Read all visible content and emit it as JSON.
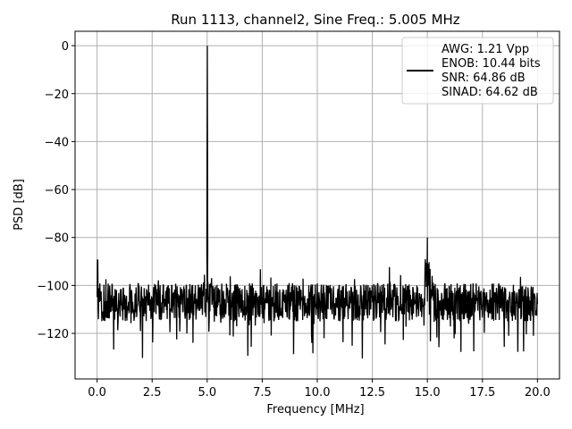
{
  "chart_data": {
    "type": "line",
    "title": "Run 1113, channel2, Sine Freq.: 5.005 MHz",
    "xlabel": "Frequency [MHz]",
    "ylabel": "PSD [dB]",
    "xlim": [
      -1.0,
      21.0
    ],
    "ylim": [
      -139.0,
      6.0
    ],
    "xticks": [
      0.0,
      2.5,
      5.0,
      7.5,
      10.0,
      12.5,
      15.0,
      17.5,
      20.0
    ],
    "xtick_labels": [
      "0.0",
      "2.5",
      "5.0",
      "7.5",
      "10.0",
      "12.5",
      "15.0",
      "17.5",
      "20.0"
    ],
    "yticks": [
      0,
      -20,
      -40,
      -60,
      -80,
      -100,
      -120
    ],
    "ytick_labels": [
      "0",
      "−20",
      "−40",
      "−60",
      "−80",
      "−100",
      "−120"
    ],
    "grid": true,
    "legend_position": "top-right",
    "line_color": "#000000",
    "legend_lines": [
      "AWG: 1.21 Vpp",
      "ENOB: 10.44 bits",
      "SNR: 64.86 dB",
      "SINAD: 64.62 dB"
    ],
    "series": [
      {
        "noise_floor_db": -107,
        "noise_range_db": [
          -132,
          -89
        ],
        "peaks": [
          {
            "x": 5.005,
            "y": 0
          },
          {
            "x": 15.0,
            "y": -80
          }
        ]
      }
    ]
  }
}
